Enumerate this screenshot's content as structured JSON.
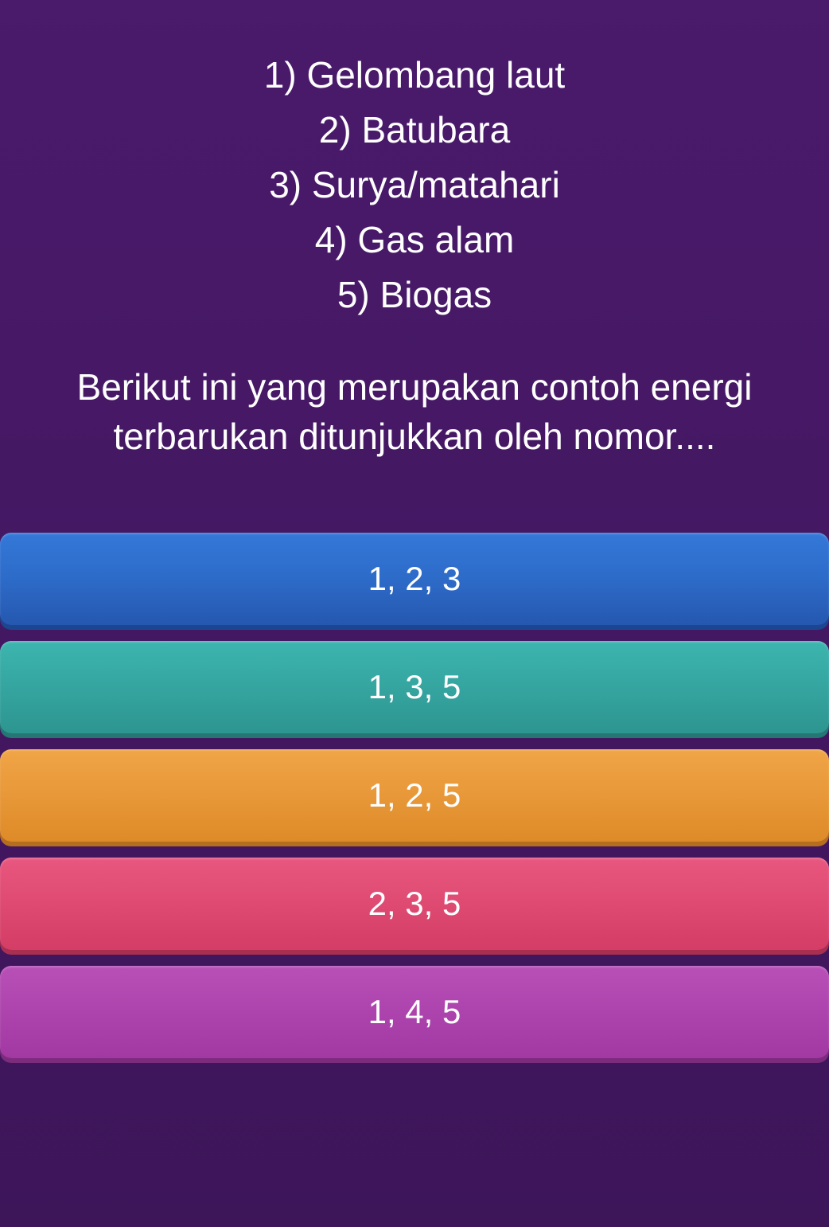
{
  "background": {
    "gradient_top": "#4a1a6b",
    "gradient_bottom": "#3d1559"
  },
  "question": {
    "list_items": [
      "1) Gelombang laut",
      "2) Batubara",
      "3) Surya/matahari",
      "4) Gas alam",
      "5) Biogas"
    ],
    "prompt": "Berikut ini yang merupakan contoh energi terbarukan ditunjukkan oleh nomor....",
    "text_color": "#ffffff",
    "font_size": 46
  },
  "answers": [
    {
      "label": "1, 2, 3",
      "gradient_top": "#3478d8",
      "gradient_bottom": "#2558b0",
      "shadow_color": "#1d4690"
    },
    {
      "label": "1, 3, 5",
      "gradient_top": "#3db5af",
      "gradient_bottom": "#2d9590",
      "shadow_color": "#247772"
    },
    {
      "label": "1, 2, 5",
      "gradient_top": "#f0a547",
      "gradient_bottom": "#de8a28",
      "shadow_color": "#b56e1e"
    },
    {
      "label": "2, 3, 5",
      "gradient_top": "#e8577f",
      "gradient_bottom": "#d43d65",
      "shadow_color": "#a82f50"
    },
    {
      "label": "1, 4, 5",
      "gradient_top": "#b850b8",
      "gradient_bottom": "#a238a2",
      "shadow_color": "#7d2b7d"
    }
  ],
  "answer_style": {
    "text_color": "#ffffff",
    "font_size": 42,
    "height": 116,
    "border_radius": 14
  }
}
